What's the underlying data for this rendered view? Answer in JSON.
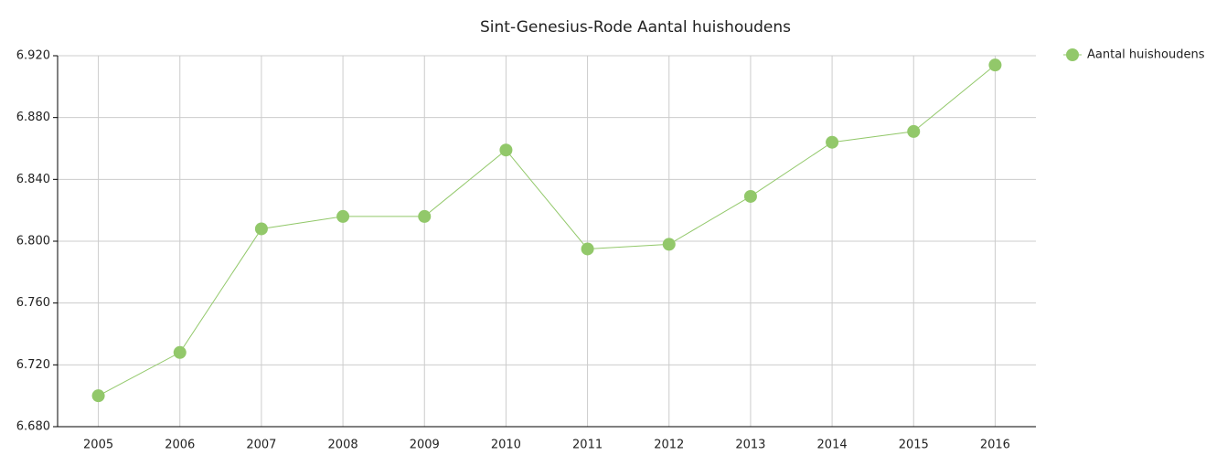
{
  "chart_data": {
    "type": "line",
    "title": "Sint-Genesius-Rode  Aantal huishoudens",
    "categories": [
      "2005",
      "2006",
      "2007",
      "2008",
      "2009",
      "2010",
      "2011",
      "2012",
      "2013",
      "2014",
      "2015",
      "2016"
    ],
    "series": [
      {
        "name": "Aantal huishoudens",
        "color": "#92c86a",
        "values": [
          6700,
          6728,
          6808,
          6816,
          6816,
          6859,
          6795,
          6798,
          6829,
          6864,
          6871,
          6914
        ]
      }
    ],
    "ylim": [
      6680,
      6920
    ],
    "yticks": [
      {
        "value": 6680,
        "label": "6.680"
      },
      {
        "value": 6720,
        "label": "6.720"
      },
      {
        "value": 6760,
        "label": "6.760"
      },
      {
        "value": 6800,
        "label": "6.800"
      },
      {
        "value": 6840,
        "label": "6.840"
      },
      {
        "value": 6880,
        "label": "6.880"
      },
      {
        "value": 6920,
        "label": "6.920"
      }
    ],
    "grid": true,
    "legend": "top-right"
  }
}
